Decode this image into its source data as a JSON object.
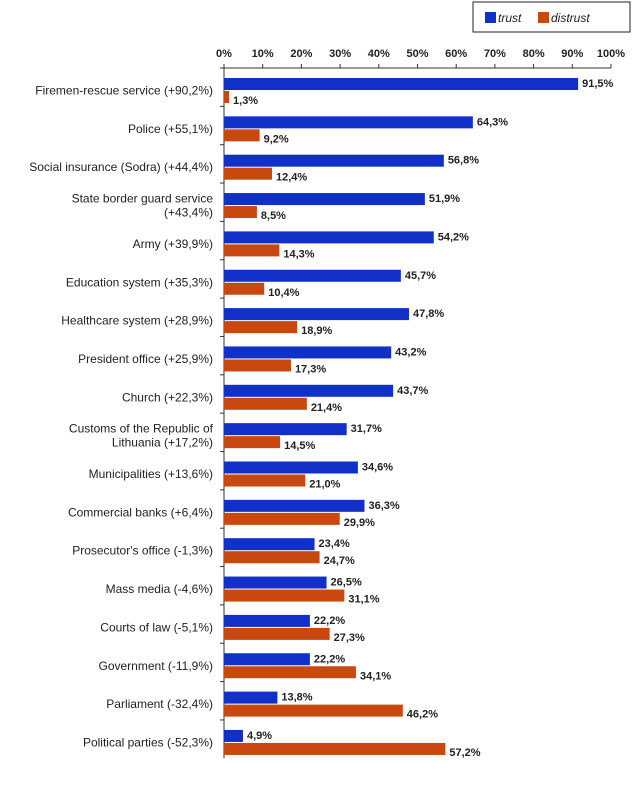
{
  "chart_data": {
    "type": "bar",
    "orientation": "horizontal",
    "xlim": [
      0,
      100
    ],
    "x_ticks": [
      "0%",
      "10%",
      "20%",
      "30%",
      "40%",
      "50%",
      "60%",
      "70%",
      "80%",
      "90%",
      "100%"
    ],
    "legend_position": "top-right",
    "categories": [
      [
        "Firemen-rescue service (+90,2%)"
      ],
      [
        "Police (+55,1%)"
      ],
      [
        "Social insurance (Sodra) (+44,4%)"
      ],
      [
        "State border guard service",
        "(+43,4%)"
      ],
      [
        "Army (+39,9%)"
      ],
      [
        "Education system (+35,3%)"
      ],
      [
        "Healthcare system (+28,9%)"
      ],
      [
        "President office (+25,9%)"
      ],
      [
        "Church (+22,3%)"
      ],
      [
        "Customs of the Republic of",
        "Lithuania (+17,2%)"
      ],
      [
        "Municipalities (+13,6%)"
      ],
      [
        "Commercial banks (+6,4%)"
      ],
      [
        "Prosecutor's office (-1,3%)"
      ],
      [
        "Mass media (-4,6%)"
      ],
      [
        "Courts of law (-5,1%)"
      ],
      [
        "Government (-11,9%)"
      ],
      [
        "Parliament (-32,4%)"
      ],
      [
        "Political parties (-52,3%)"
      ]
    ],
    "series": [
      {
        "name": "trust",
        "color": "#1030c8",
        "values": [
          91.5,
          64.3,
          56.8,
          51.9,
          54.2,
          45.7,
          47.8,
          43.2,
          43.7,
          31.7,
          34.6,
          36.3,
          23.4,
          26.5,
          22.2,
          22.2,
          13.8,
          4.9
        ],
        "labels": [
          "91,5%",
          "64,3%",
          "56,8%",
          "51,9%",
          "54,2%",
          "45,7%",
          "47,8%",
          "43,2%",
          "43,7%",
          "31,7%",
          "34,6%",
          "36,3%",
          "23,4%",
          "26,5%",
          "22,2%",
          "22,2%",
          "13,8%",
          "4,9%"
        ]
      },
      {
        "name": "distrust",
        "color": "#c84810",
        "values": [
          1.3,
          9.2,
          12.4,
          8.5,
          14.3,
          10.4,
          18.9,
          17.3,
          21.4,
          14.5,
          21.0,
          29.9,
          24.7,
          31.1,
          27.3,
          34.1,
          46.2,
          57.2
        ],
        "labels": [
          "1,3%",
          "9,2%",
          "12,4%",
          "8,5%",
          "14,3%",
          "10,4%",
          "18,9%",
          "17,3%",
          "21,4%",
          "14,5%",
          "21,0%",
          "29,9%",
          "24,7%",
          "31,1%",
          "27,3%",
          "34,1%",
          "46,2%",
          "57,2%"
        ]
      }
    ]
  }
}
